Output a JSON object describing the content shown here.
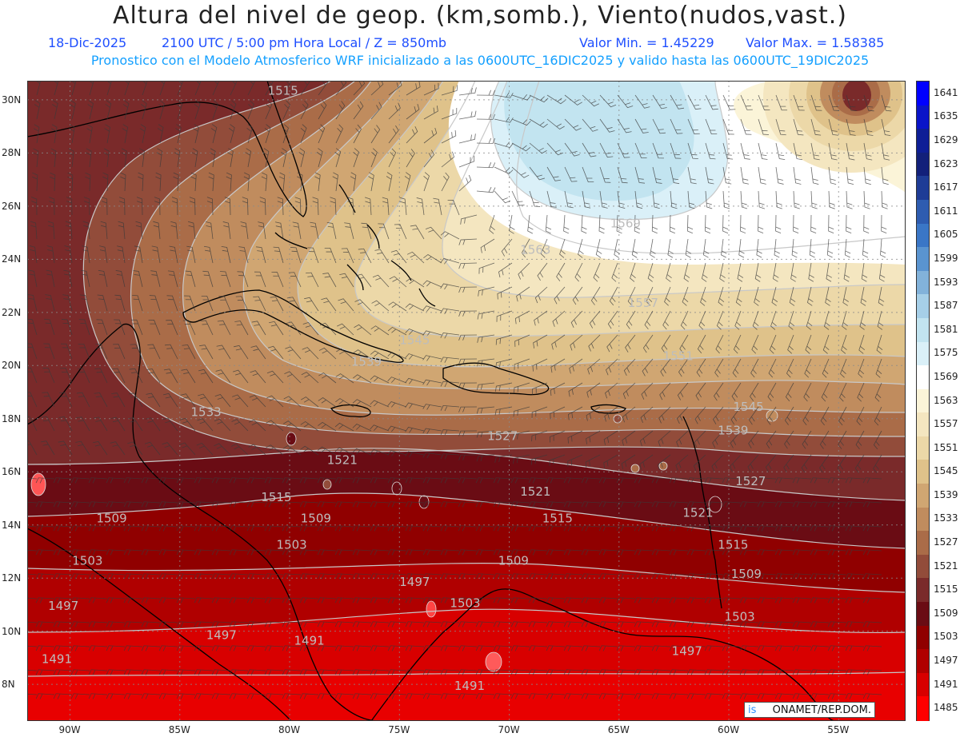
{
  "header": {
    "title": "Altura del nivel de geop. (km,somb.), Viento(nudos,vast.)",
    "date": "18-Dic-2025",
    "time": "2100 UTC / 5:00 pm Hora Local / Z = 850mb",
    "min": "Valor Min. = 1.45229",
    "max": "Valor Max. = 1.58385",
    "forecast": "Pronostico con el Modelo Atmosferico WRF inicializado a las 0600UTC_16DIC2025 y valido hasta las  0600UTC_19DIC2025"
  },
  "map": {
    "lat_labels": [
      "30N",
      "28N",
      "26N",
      "24N",
      "22N",
      "20N",
      "18N",
      "16N",
      "14N",
      "12N",
      "10N",
      "8N"
    ],
    "lon_labels": [
      "90W",
      "85W",
      "80W",
      "75W",
      "70W",
      "65W",
      "60W",
      "55W"
    ],
    "contour_labels": [
      {
        "text": "1515",
        "lon": -81.0,
        "lat": 30.2
      },
      {
        "text": "1569",
        "lon": -65.4,
        "lat": 25.2
      },
      {
        "text": "1563",
        "lon": -69.5,
        "lat": 24.2
      },
      {
        "text": "1557",
        "lon": -64.6,
        "lat": 22.2
      },
      {
        "text": "1551",
        "lon": -63.0,
        "lat": 20.2
      },
      {
        "text": "1545",
        "lon": -75.0,
        "lat": 20.8
      },
      {
        "text": "1539",
        "lon": -77.2,
        "lat": 20.0
      },
      {
        "text": "1545",
        "lon": -59.8,
        "lat": 18.3
      },
      {
        "text": "1539",
        "lon": -60.5,
        "lat": 17.4
      },
      {
        "text": "1533",
        "lon": -84.5,
        "lat": 18.1
      },
      {
        "text": "1527",
        "lon": -71.0,
        "lat": 17.2
      },
      {
        "text": "1521",
        "lon": -78.3,
        "lat": 16.3
      },
      {
        "text": "1521",
        "lon": -69.5,
        "lat": 15.1
      },
      {
        "text": "1521",
        "lon": -62.1,
        "lat": 14.3
      },
      {
        "text": "1527",
        "lon": -59.7,
        "lat": 15.5
      },
      {
        "text": "1515",
        "lon": -81.3,
        "lat": 14.9
      },
      {
        "text": "1515",
        "lon": -68.5,
        "lat": 14.1
      },
      {
        "text": "1515",
        "lon": -60.5,
        "lat": 13.1
      },
      {
        "text": "1509",
        "lon": -88.8,
        "lat": 14.1
      },
      {
        "text": "1509",
        "lon": -79.5,
        "lat": 14.1
      },
      {
        "text": "1509",
        "lon": -70.5,
        "lat": 12.5
      },
      {
        "text": "1509",
        "lon": -59.9,
        "lat": 12.0
      },
      {
        "text": "1503",
        "lon": -80.6,
        "lat": 13.1
      },
      {
        "text": "1503",
        "lon": -89.9,
        "lat": 12.5
      },
      {
        "text": "1503",
        "lon": -72.7,
        "lat": 10.9
      },
      {
        "text": "1503",
        "lon": -60.2,
        "lat": 10.4
      },
      {
        "text": "1497",
        "lon": -91.0,
        "lat": 10.8
      },
      {
        "text": "1497",
        "lon": -75.0,
        "lat": 11.7
      },
      {
        "text": "1497",
        "lon": -83.8,
        "lat": 9.7
      },
      {
        "text": "1497",
        "lon": -62.6,
        "lat": 9.1
      },
      {
        "text": "1491",
        "lon": -79.8,
        "lat": 9.5
      },
      {
        "text": "1491",
        "lon": -91.3,
        "lat": 8.8
      },
      {
        "text": "1491",
        "lon": -72.5,
        "lat": 7.8
      }
    ],
    "credit": "ONAMET/REP.DOM.",
    "credit_logo": "is"
  },
  "colorbar": {
    "labels": [
      "1641",
      "1635",
      "1629",
      "1623",
      "1617",
      "1611",
      "1605",
      "1599",
      "1593",
      "1587",
      "1581",
      "1575",
      "1569",
      "1563",
      "1557",
      "1551",
      "1545",
      "1539",
      "1533",
      "1527",
      "1521",
      "1515",
      "1509",
      "1503",
      "1497",
      "1491",
      "1485"
    ],
    "colors": [
      "#0000ff",
      "#0a14c8",
      "#0e1e96",
      "#12207a",
      "#1e3c96",
      "#2e5cb0",
      "#3a76c6",
      "#5a94d0",
      "#82b2da",
      "#a6cfe8",
      "#c2e4f0",
      "#daf0f8",
      "#ffffff",
      "#fbf4d8",
      "#f4e6c0",
      "#ecd8a8",
      "#dfc28a",
      "#d0a672",
      "#c08c5e",
      "#aa6c48",
      "#924c3a",
      "#7a2a2a",
      "#6a0c14",
      "#900000",
      "#b00000",
      "#d80000",
      "#ff0000"
    ]
  }
}
